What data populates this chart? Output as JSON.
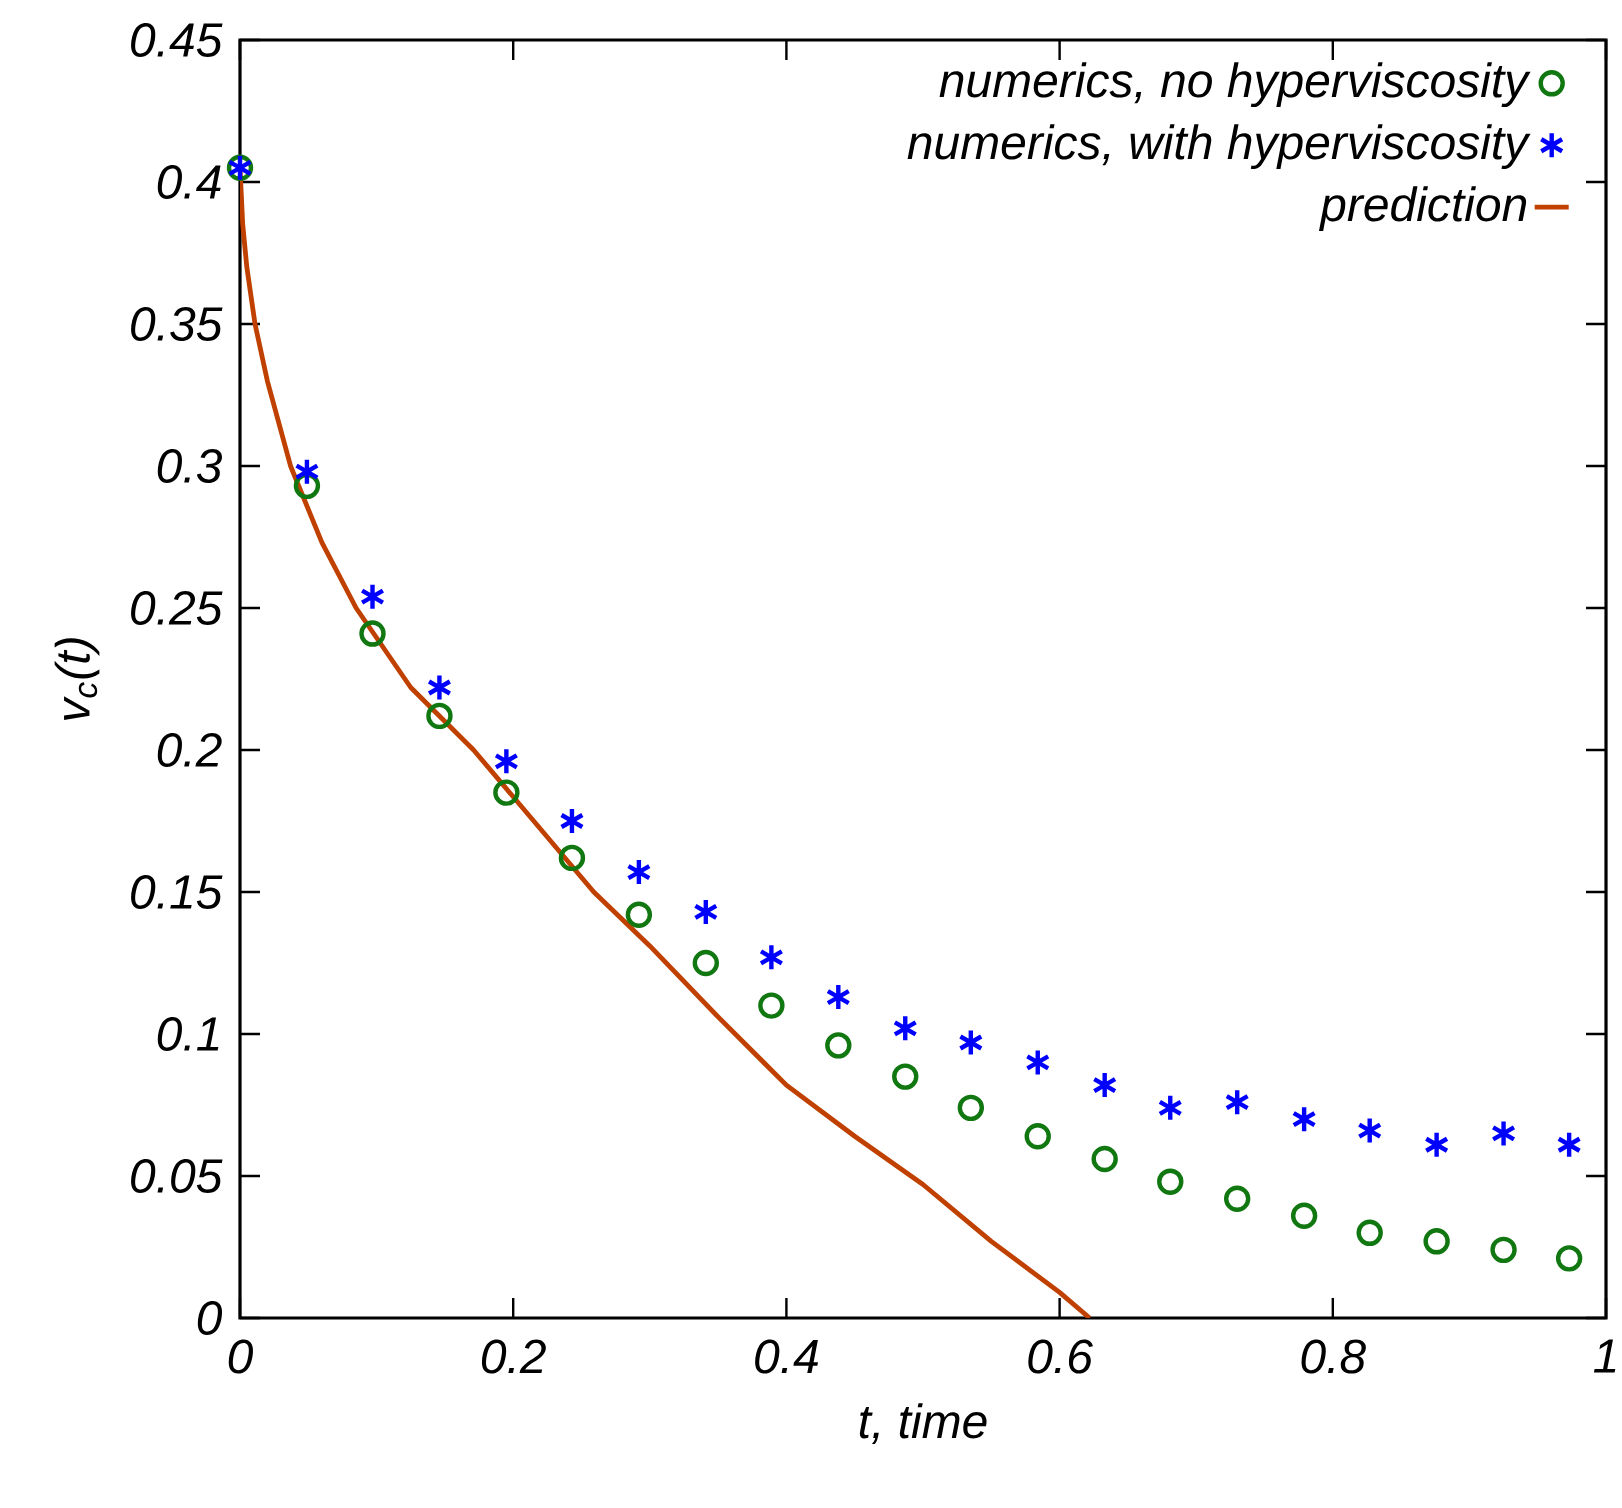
{
  "chart_data": {
    "type": "scatter",
    "xlabel": "t, time",
    "ylabel": "v$_{c}$(t)",
    "xlim": [
      0,
      1
    ],
    "ylim": [
      0,
      0.45
    ],
    "xticks": [
      0,
      0.2,
      0.4,
      0.6,
      0.8,
      1
    ],
    "yticks": [
      0,
      0.05,
      0.1,
      0.15,
      0.2,
      0.25,
      0.3,
      0.35,
      0.4,
      0.45
    ],
    "grid": false,
    "legend": "top right",
    "series": [
      {
        "name": "numerics, no hyperviscosity",
        "marker": "circle",
        "color": "#117711",
        "x": [
          0,
          0.049,
          0.097,
          0.146,
          0.195,
          0.243,
          0.292,
          0.341,
          0.389,
          0.438,
          0.487,
          0.535,
          0.584,
          0.633,
          0.681,
          0.73,
          0.779,
          0.827,
          0.876,
          0.925,
          0.973
        ],
        "values": [
          0.405,
          0.293,
          0.241,
          0.212,
          0.185,
          0.162,
          0.142,
          0.125,
          0.11,
          0.096,
          0.085,
          0.074,
          0.064,
          0.056,
          0.048,
          0.042,
          0.036,
          0.03,
          0.027,
          0.024,
          0.021
        ]
      },
      {
        "name": "numerics, with hyperviscosity",
        "marker": "cross",
        "color": "#0000ff",
        "x": [
          0,
          0.049,
          0.097,
          0.146,
          0.195,
          0.243,
          0.292,
          0.341,
          0.389,
          0.438,
          0.487,
          0.535,
          0.584,
          0.633,
          0.681,
          0.73,
          0.779,
          0.827,
          0.876,
          0.925,
          0.973
        ],
        "values": [
          0.405,
          0.298,
          0.254,
          0.222,
          0.196,
          0.175,
          0.157,
          0.143,
          0.127,
          0.113,
          0.102,
          0.097,
          0.09,
          0.082,
          0.074,
          0.076,
          0.07,
          0.066,
          0.061,
          0.065,
          0.061
        ]
      },
      {
        "name": "prediction",
        "type": "line",
        "marker": "none",
        "line_style": "solid",
        "color": "#c04000",
        "x": [
          0,
          0.002,
          0.005,
          0.011,
          0.02,
          0.037,
          0.06,
          0.085,
          0.125,
          0.171,
          0.259,
          0.3,
          0.35,
          0.4,
          0.45,
          0.5,
          0.55,
          0.6,
          0.622
        ],
        "values": [
          0.405,
          0.385,
          0.37,
          0.35,
          0.33,
          0.3,
          0.273,
          0.25,
          0.222,
          0.2,
          0.15,
          0.131,
          0.106,
          0.082,
          0.064,
          0.047,
          0.027,
          0.009,
          0
        ]
      }
    ]
  }
}
